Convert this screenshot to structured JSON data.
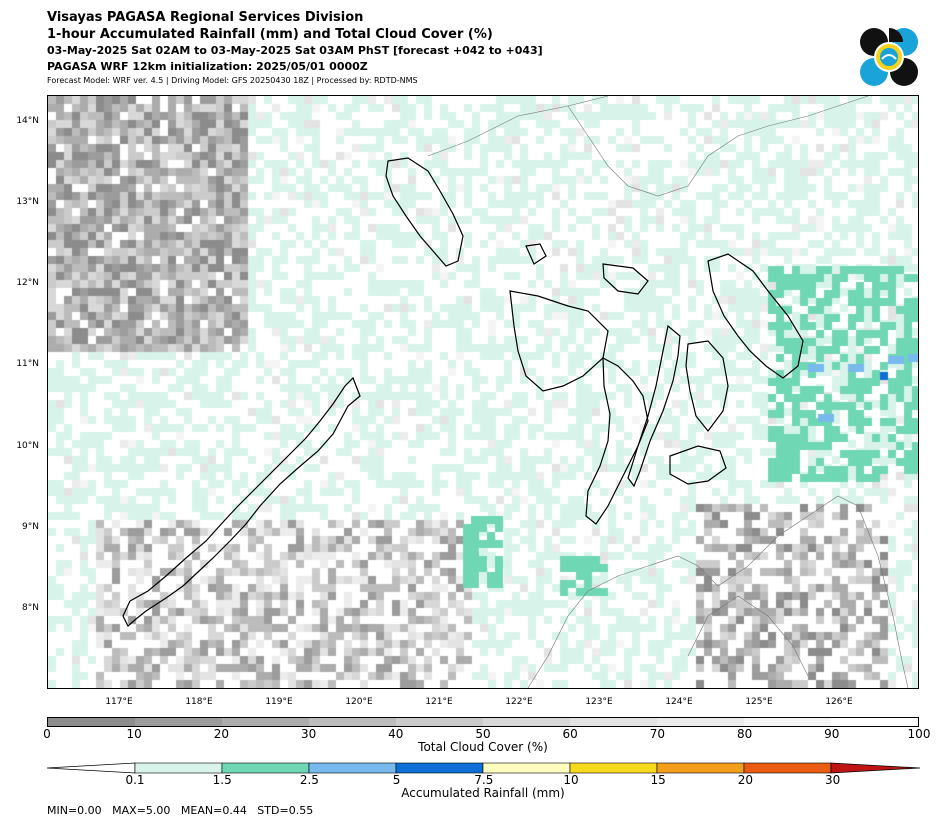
{
  "header": {
    "line1": "Visayas PAGASA Regional Services Division",
    "line2": "1-hour Accumulated Rainfall (mm) and Total Cloud Cover (%)",
    "line3": "03-May-2025 Sat 02AM to 03-May-2025 Sat 03AM PhST [forecast +042 to +043]",
    "line4": "PAGASA WRF 12km initialization: 2025/05/01 0000Z",
    "line5": "Forecast Model: WRF ver. 4.5 | Driving Model: GFS 20250430 18Z | Processed by: RDTD-NMS"
  },
  "map": {
    "lat_labels": [
      "14°N",
      "13°N",
      "12°N",
      "11°N",
      "10°N",
      "9°N",
      "8°N"
    ],
    "lon_labels": [
      "117°E",
      "118°E",
      "119°E",
      "120°E",
      "121°E",
      "122°E",
      "123°E",
      "124°E",
      "125°E",
      "126°E"
    ]
  },
  "cloud_legend": {
    "title": "Total Cloud Cover (%)",
    "ticks": [
      "0",
      "10",
      "20",
      "30",
      "40",
      "50",
      "60",
      "70",
      "80",
      "90",
      "100"
    ],
    "colors": [
      "#8c8c8c",
      "#9c9c9c",
      "#acacac",
      "#bcbcbc",
      "#cbcbcb",
      "#d8d8d8",
      "#e3e3e3",
      "#ececec",
      "#f5f5f5",
      "#ffffff"
    ]
  },
  "rain_legend": {
    "title": "Accumulated Rainfall (mm)",
    "ticks": [
      "0.1",
      "1.5",
      "2.5",
      "5",
      "7.5",
      "10",
      "15",
      "20",
      "30"
    ],
    "colors": [
      "#d8f3ea",
      "#6fd7b4",
      "#78b9ee",
      "#0d6fd6",
      "#fffcc0",
      "#f8da1c",
      "#f29f1d",
      "#ea5c12",
      "#c01414"
    ]
  },
  "stats": {
    "text": "MIN=0.00   MAX=5.00   MEAN=0.44   STD=0.55"
  }
}
